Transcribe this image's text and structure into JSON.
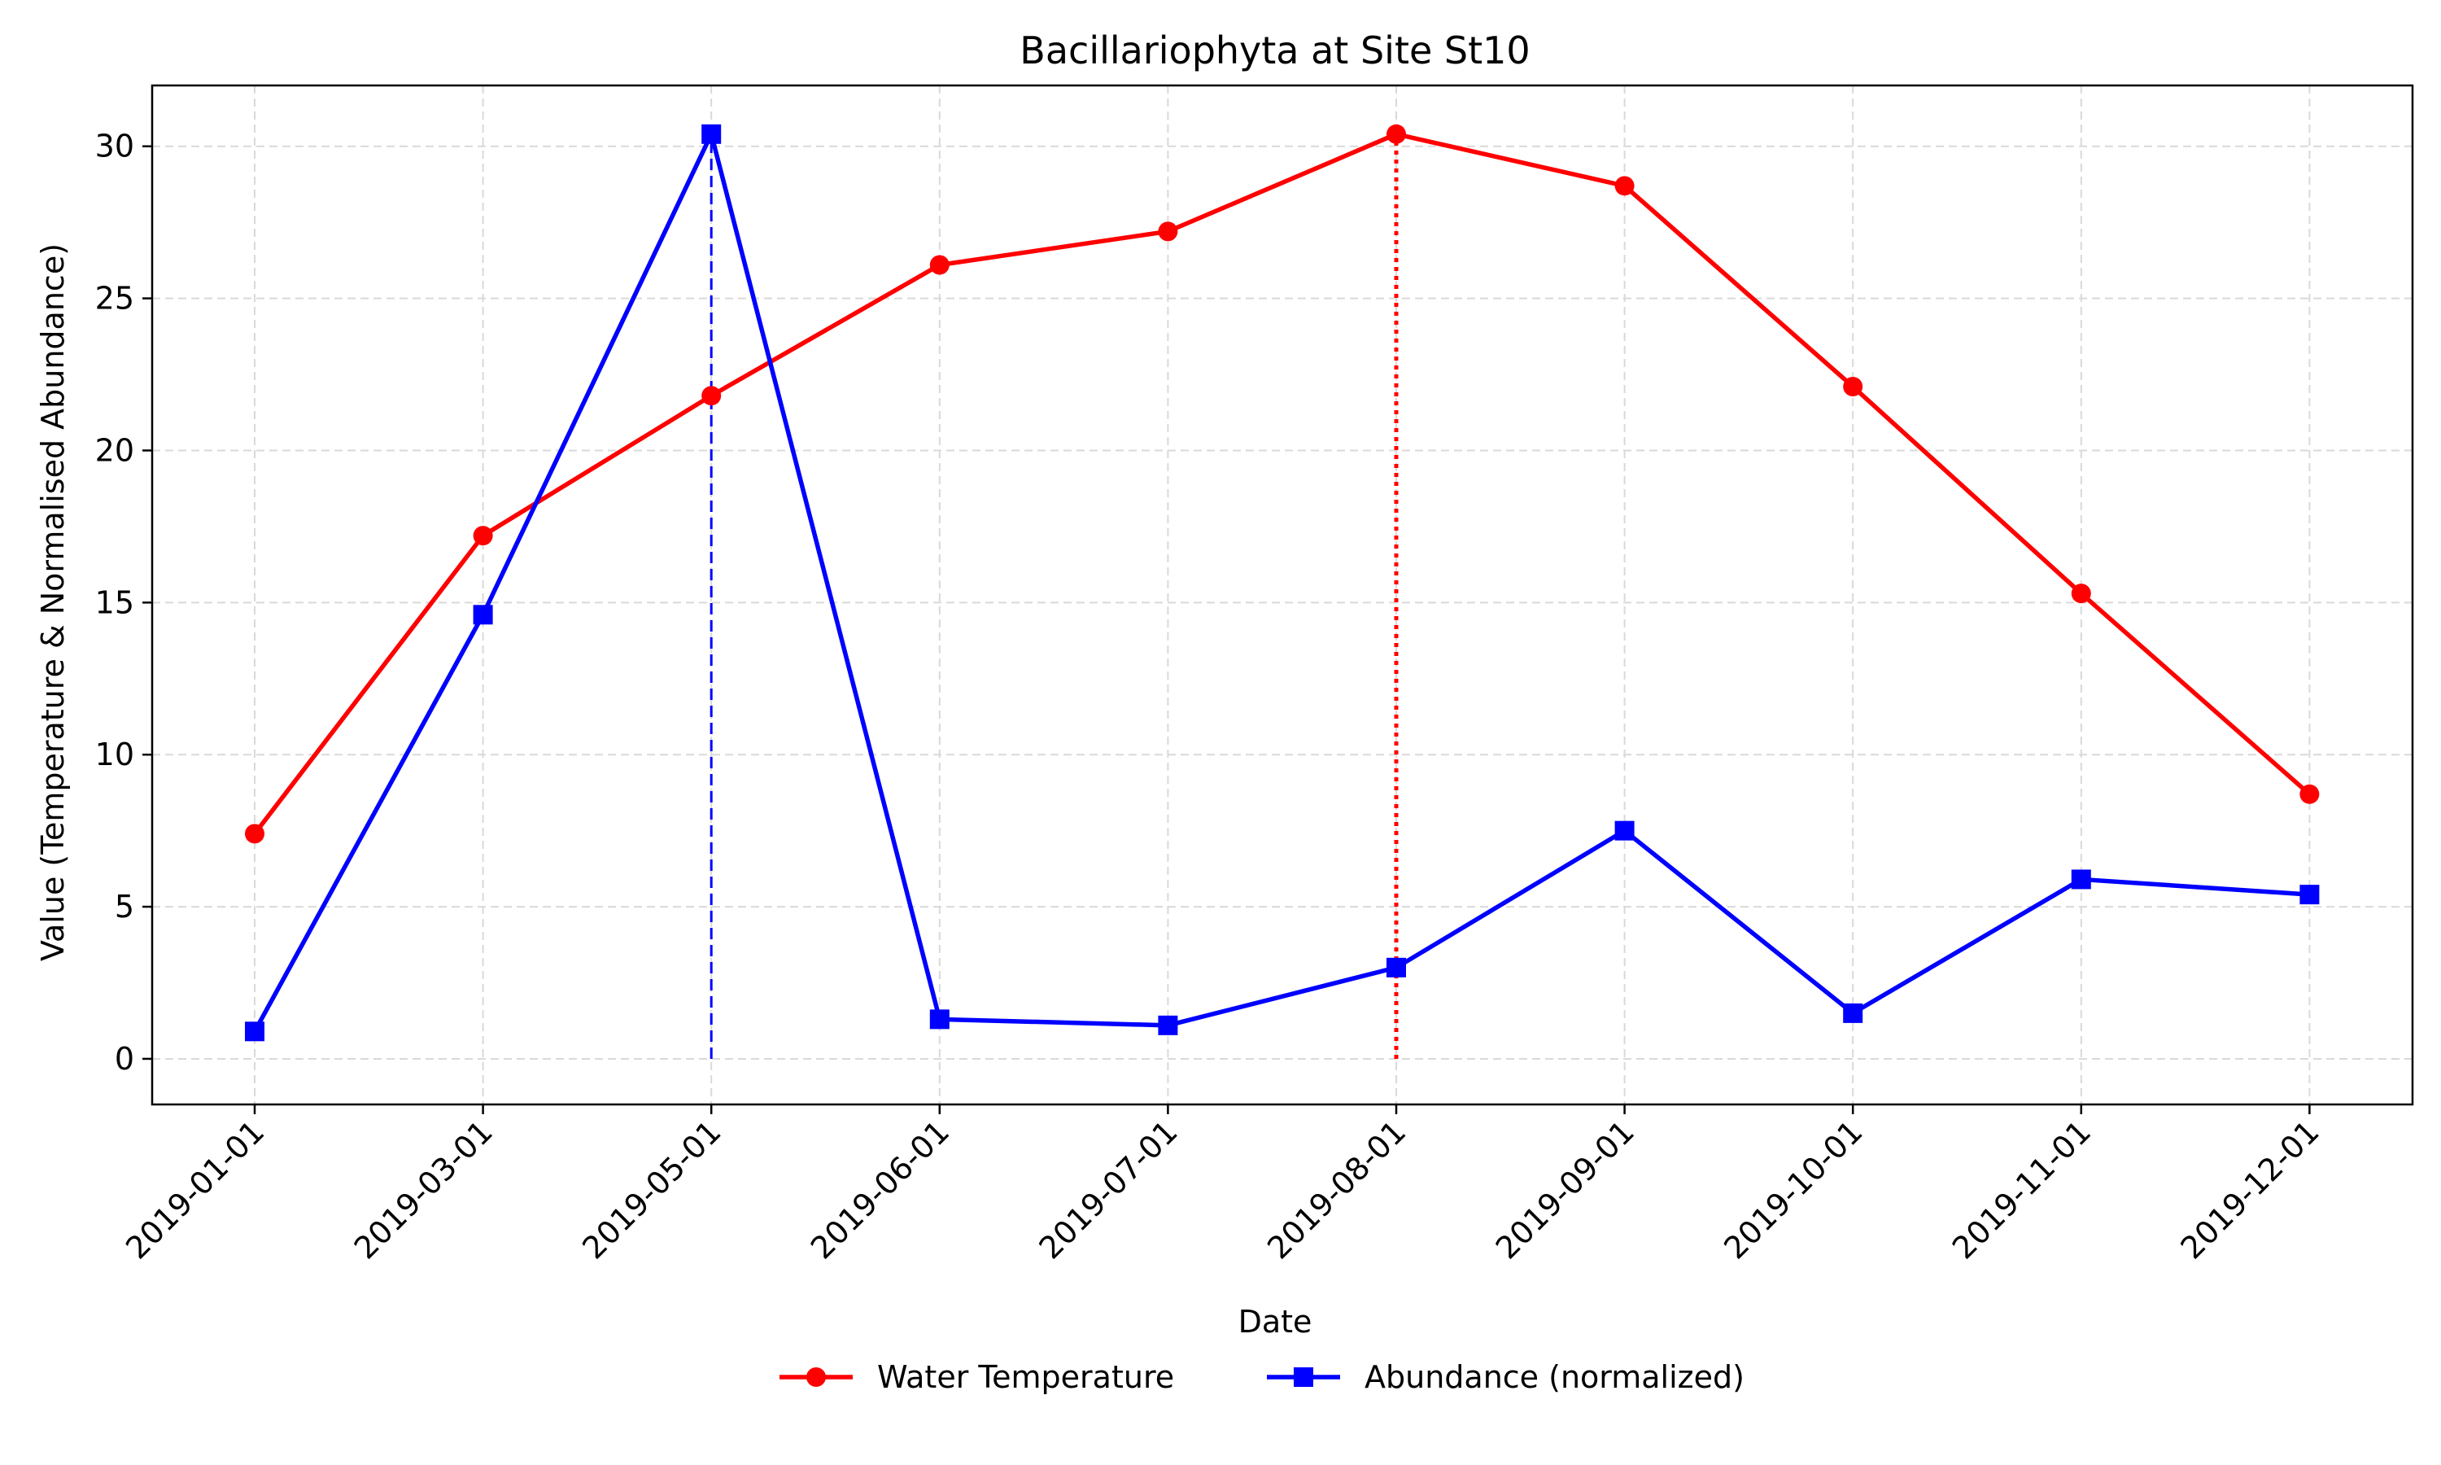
{
  "chart_data": {
    "type": "line",
    "title": "Bacillariophyta at Site St10",
    "xlabel": "Date",
    "ylabel": "Value (Temperature & Normalised Abundance)",
    "categories": [
      "2019-01-01",
      "2019-03-01",
      "2019-05-01",
      "2019-06-01",
      "2019-07-01",
      "2019-08-01",
      "2019-09-01",
      "2019-10-01",
      "2019-11-01",
      "2019-12-01"
    ],
    "ylim": [
      -1.5,
      32
    ],
    "yticks": [
      0,
      5,
      10,
      15,
      20,
      25,
      30
    ],
    "grid": true,
    "legend_position": "bottom-center",
    "series": [
      {
        "name": "Water Temperature",
        "color": "#ff0000",
        "marker": "circle",
        "values": [
          7.4,
          17.2,
          21.8,
          26.1,
          27.2,
          30.4,
          28.7,
          22.1,
          15.3,
          8.7
        ]
      },
      {
        "name": "Abundance (normalized)",
        "color": "#0000ff",
        "marker": "square",
        "values": [
          0.9,
          14.6,
          30.4,
          1.3,
          1.1,
          3.0,
          7.5,
          1.5,
          5.9,
          5.4
        ]
      }
    ],
    "vertical_lines": [
      {
        "x": "2019-05-01",
        "color": "#0000ff",
        "style": "dashed",
        "from": 0,
        "to": 30.4
      },
      {
        "x": "2019-08-01",
        "color": "#ff0000",
        "style": "dotted",
        "from": 0,
        "to": 30.4
      }
    ]
  }
}
